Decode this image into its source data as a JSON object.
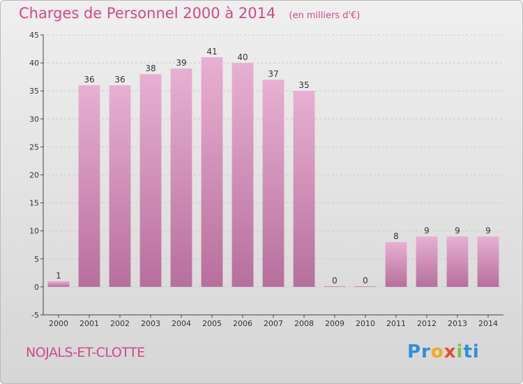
{
  "chart_data": {
    "type": "bar",
    "title": "Charges de Personnel 2000 à 2014",
    "subtitle": "(en milliers d'€)",
    "categories": [
      "2000",
      "2001",
      "2002",
      "2003",
      "2004",
      "2005",
      "2006",
      "2007",
      "2008",
      "2009",
      "2010",
      "2011",
      "2012",
      "2013",
      "2014"
    ],
    "values": [
      1,
      36,
      36,
      38,
      39,
      41,
      40,
      37,
      35,
      0,
      0,
      8,
      9,
      9,
      9
    ],
    "data_labels": [
      "1",
      "36",
      "36",
      "38",
      "39",
      "41",
      "40",
      "37",
      "35",
      "0",
      "0",
      "8",
      "9",
      "9",
      "9"
    ],
    "ylim": [
      -5,
      45
    ],
    "yticks": [
      -5,
      0,
      5,
      10,
      15,
      20,
      25,
      30,
      35,
      40,
      45
    ],
    "grid": true,
    "legend": "none",
    "colors": {
      "bar_light": "#e8b0d2",
      "bar_dark": "#b76f9d",
      "text_accent": "#d0488c"
    }
  },
  "commune": "NOJALS-ET-CLOTTE",
  "logo": {
    "text": "Proxiti",
    "parts": [
      "Pr",
      "o",
      "x",
      "i",
      "ti"
    ]
  }
}
